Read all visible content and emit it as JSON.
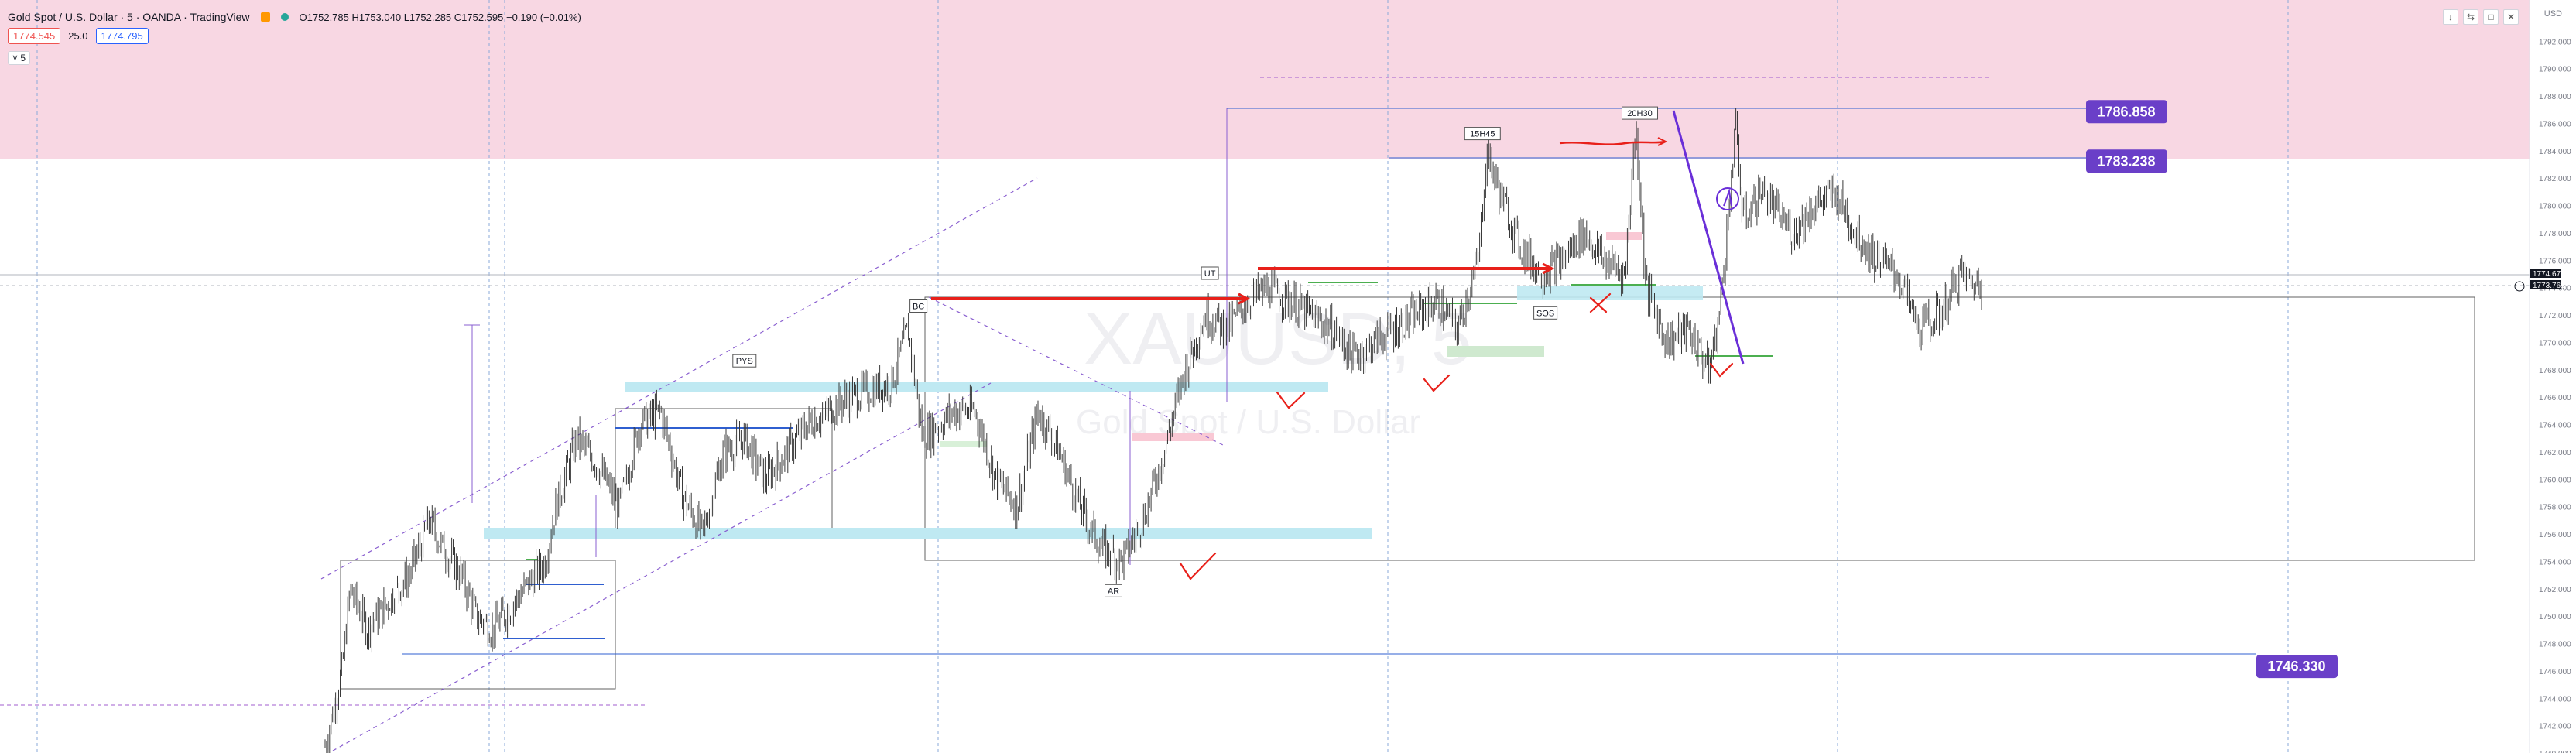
{
  "header": {
    "title": "Gold Spot / U.S. Dollar · 5 · OANDA · TradingView",
    "ohlc": "O1752.785  H1753.040  L1752.285  C1752.595  −0.190 (−0.01%)",
    "sell_price": "1774.545",
    "spread": "25.0",
    "buy_price": "1774.795",
    "interval_toggle": "5"
  },
  "toolbar_icons": [
    "down-arrow-icon",
    "expand-icon",
    "maximize-icon",
    "close-icon"
  ],
  "colors": {
    "candle": "#3a3a3a",
    "supply_zone": "#f8d7e3",
    "red_line": "#e8201a",
    "blue_line": "#2f5fd0",
    "purple_label": "#6a3fc8",
    "cyan_zone": "#bfe9f2",
    "price_label_bg": "#131722"
  },
  "chart_data": {
    "type": "candlestick",
    "symbol": "XAUUSD",
    "watermark": [
      "XAUUSD, 5",
      "Gold Spot / U.S. Dollar"
    ],
    "currency": "USD",
    "ylim": [
      1740,
      1794
    ],
    "y_ticks": [
      "1792.000",
      "1790.000",
      "1788.000",
      "1786.000",
      "1784.000",
      "1782.000",
      "1780.000",
      "1778.000",
      "1776.000",
      "1774.000",
      "1772.000",
      "1770.000",
      "1768.000",
      "1766.000",
      "1764.000",
      "1762.000",
      "1760.000",
      "1758.000",
      "1756.000",
      "1754.000",
      "1752.000",
      "1750.000",
      "1748.000",
      "1746.000",
      "1744.000",
      "1742.000",
      "1740.000"
    ],
    "current_price_labels": [
      "1774.670",
      "1773.761"
    ],
    "price_path": [
      [
        0,
        1740.5
      ],
      [
        0.8,
        1746
      ],
      [
        1.2,
        1752
      ],
      [
        2,
        1749
      ],
      [
        3,
        1751
      ],
      [
        4,
        1753
      ],
      [
        5,
        1757
      ],
      [
        5.6,
        1755
      ],
      [
        6.5,
        1753
      ],
      [
        7.2,
        1750
      ],
      [
        8,
        1749
      ],
      [
        9,
        1751
      ],
      [
        10.5,
        1754
      ],
      [
        11,
        1758
      ],
      [
        12,
        1763
      ],
      [
        13,
        1761
      ],
      [
        14,
        1758
      ],
      [
        15,
        1764
      ],
      [
        16,
        1765
      ],
      [
        17,
        1759
      ],
      [
        18,
        1756
      ],
      [
        19,
        1762
      ],
      [
        20,
        1763
      ],
      [
        21,
        1760
      ],
      [
        22,
        1762
      ],
      [
        23,
        1764
      ],
      [
        25,
        1766
      ],
      [
        27,
        1767
      ],
      [
        27.8,
        1771
      ],
      [
        28.5,
        1763
      ],
      [
        30,
        1765
      ],
      [
        31,
        1765
      ],
      [
        32,
        1760
      ],
      [
        33,
        1758
      ],
      [
        34,
        1765
      ],
      [
        35,
        1762
      ],
      [
        36,
        1758
      ],
      [
        37,
        1755
      ],
      [
        38,
        1754
      ],
      [
        39,
        1757
      ],
      [
        40,
        1762
      ],
      [
        41,
        1768
      ],
      [
        42,
        1772
      ],
      [
        43,
        1771
      ],
      [
        44,
        1773
      ],
      [
        45,
        1774
      ],
      [
        46,
        1773
      ],
      [
        47,
        1772
      ],
      [
        48,
        1771
      ],
      [
        49,
        1769
      ],
      [
        50,
        1770
      ],
      [
        51,
        1771
      ],
      [
        52,
        1772
      ],
      [
        53,
        1773
      ],
      [
        54,
        1771
      ],
      [
        55,
        1776
      ],
      [
        55.4,
        1784
      ],
      [
        56,
        1781
      ],
      [
        57,
        1777
      ],
      [
        58,
        1775
      ],
      [
        59,
        1776
      ],
      [
        60,
        1778
      ],
      [
        61,
        1776
      ],
      [
        62,
        1775
      ],
      [
        62.5,
        1786
      ],
      [
        63,
        1774
      ],
      [
        64,
        1770
      ],
      [
        65,
        1771
      ],
      [
        66,
        1768
      ],
      [
        66.5,
        1772
      ],
      [
        67,
        1781
      ],
      [
        67.3,
        1786
      ],
      [
        67.6,
        1779
      ],
      [
        68.5,
        1781
      ],
      [
        70,
        1778
      ],
      [
        71,
        1780
      ],
      [
        72,
        1781
      ],
      [
        73,
        1778
      ],
      [
        74,
        1776
      ],
      [
        75,
        1775
      ],
      [
        76,
        1771
      ],
      [
        77,
        1772
      ],
      [
        78,
        1775
      ],
      [
        79,
        1774
      ]
    ],
    "price_boxes": [
      {
        "label": "1786.858",
        "y": 1786.858
      },
      {
        "label": "1783.238",
        "y": 1783.238
      },
      {
        "label": "1746.330",
        "y": 1746.33
      }
    ],
    "annotations": [
      {
        "text": "PYS",
        "x": 20.0,
        "y": 1768.6
      },
      {
        "text": "BC",
        "x": 28.3,
        "y": 1772.6
      },
      {
        "text": "UT",
        "x": 42.2,
        "y": 1775.0
      },
      {
        "text": "15H45",
        "x": 55.2,
        "y": 1785.2
      },
      {
        "text": "20H30",
        "x": 62.7,
        "y": 1786.7
      },
      {
        "text": "SOS",
        "x": 58.2,
        "y": 1772.1
      },
      {
        "text": "AR",
        "x": 37.6,
        "y": 1751.8
      }
    ],
    "supply_zone": {
      "from": 1783.238,
      "to": 1794
    }
  }
}
